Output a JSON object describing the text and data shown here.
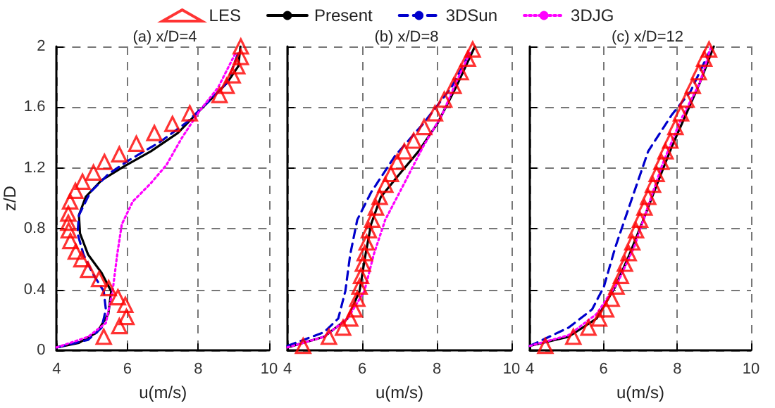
{
  "chart_data": [
    {
      "type": "line",
      "title": "(a) x/D=4",
      "xlabel": "u(m/s)",
      "ylabel": "z/D",
      "xlim": [
        4,
        10
      ],
      "xticks": [
        4,
        6,
        8,
        10
      ],
      "ylim": [
        0,
        2
      ],
      "yticks": [
        0,
        0.4,
        0.8,
        1.2,
        1.6,
        2
      ],
      "grid": true,
      "legend": "top",
      "series": [
        {
          "name": "LES",
          "type": "scatter",
          "marker": "triangle",
          "color": "#ff0000",
          "x": [
            9.2,
            9.2,
            9.1,
            8.97,
            8.8,
            8.6,
            7.76,
            7.27,
            6.76,
            6.25,
            5.77,
            5.35,
            5.04,
            4.73,
            4.53,
            4.38,
            4.33,
            4.33,
            4.34,
            4.39,
            4.54,
            4.7,
            4.89,
            5.2,
            5.47,
            5.73,
            5.94,
            5.97,
            5.77,
            5.33
          ],
          "values": [
            2.0,
            1.93,
            1.87,
            1.81,
            1.74,
            1.68,
            1.56,
            1.49,
            1.43,
            1.36,
            1.29,
            1.24,
            1.17,
            1.11,
            1.05,
            0.98,
            0.9,
            0.84,
            0.79,
            0.72,
            0.65,
            0.6,
            0.53,
            0.47,
            0.41,
            0.35,
            0.3,
            0.22,
            0.16,
            0.09
          ]
        },
        {
          "name": "Present",
          "marker": "none",
          "line_style": "solid",
          "color": "#000000",
          "x": [
            4,
            4.63,
            5.14,
            5.46,
            5.54,
            5.27,
            4.89,
            4.66,
            4.63,
            4.82,
            5.27,
            5.9,
            6.66,
            7.42,
            7.92,
            8.43,
            8.81,
            9.13,
            9.19
          ],
          "values": [
            0.02,
            0.05,
            0.12,
            0.24,
            0.39,
            0.51,
            0.63,
            0.77,
            0.89,
            1.01,
            1.12,
            1.21,
            1.31,
            1.43,
            1.55,
            1.67,
            1.76,
            1.87,
            2.0
          ]
        },
        {
          "name": "3DSun",
          "marker": "none",
          "line_style": "dashed",
          "color": "#0000cc",
          "x": [
            4,
            4.89,
            5.27,
            5.39,
            5.33,
            5.01,
            4.76,
            4.59,
            4.63,
            4.95,
            5.46,
            6.03,
            6.91,
            7.67,
            8.3,
            8.81,
            9.13
          ],
          "values": [
            0.02,
            0.07,
            0.15,
            0.27,
            0.39,
            0.51,
            0.63,
            0.77,
            0.89,
            1.04,
            1.16,
            1.25,
            1.37,
            1.5,
            1.64,
            1.76,
            1.96
          ]
        },
        {
          "name": "3DJG",
          "marker": "none",
          "line_style": "dotted",
          "color": "#ff00ff",
          "x": [
            4,
            4.89,
            5.39,
            5.58,
            5.71,
            5.84,
            6.15,
            6.66,
            7.1,
            7.54,
            8.05,
            8.56,
            9.06
          ],
          "values": [
            0.02,
            0.09,
            0.18,
            0.39,
            0.63,
            0.83,
            0.98,
            1.1,
            1.22,
            1.4,
            1.58,
            1.73,
            1.96
          ]
        }
      ]
    },
    {
      "type": "line",
      "title": "(b) x/D=8",
      "xlabel": "u(m/s)",
      "xlim": [
        4,
        10
      ],
      "xticks": [
        4,
        6,
        8,
        10
      ],
      "ylim": [
        0,
        2
      ],
      "yticks": [
        0,
        0.4,
        0.8,
        1.2,
        1.6,
        2
      ],
      "grid": true,
      "tick_labels": "x",
      "series": [
        {
          "type": "scatter",
          "marker": "triangle",
          "color": "#ff0000",
          "x": [
            4.42,
            5.11,
            5.49,
            5.68,
            5.8,
            5.87,
            5.93,
            5.97,
            6.02,
            6.07,
            6.12,
            6.18,
            6.27,
            6.37,
            6.47,
            6.62,
            6.77,
            6.94,
            7.13,
            7.38,
            7.66,
            7.95,
            8.2,
            8.45,
            8.64,
            8.83,
            8.96
          ],
          "values": [
            0.03,
            0.09,
            0.15,
            0.21,
            0.27,
            0.34,
            0.42,
            0.49,
            0.57,
            0.64,
            0.71,
            0.79,
            0.86,
            0.94,
            1.01,
            1.09,
            1.16,
            1.24,
            1.31,
            1.38,
            1.47,
            1.56,
            1.65,
            1.74,
            1.83,
            1.92,
            1.98
          ]
        },
        {
          "marker": "none",
          "line_style": "solid",
          "color": "#000000",
          "x": [
            4,
            4.98,
            5.61,
            5.93,
            6.09,
            6.24,
            6.5,
            7.0,
            7.51,
            8.01,
            8.51,
            9.02
          ],
          "values": [
            0.02,
            0.09,
            0.21,
            0.39,
            0.63,
            0.83,
            1.01,
            1.16,
            1.31,
            1.49,
            1.73,
            2.0
          ]
        },
        {
          "marker": "none",
          "line_style": "dashed",
          "color": "#0000cc",
          "x": [
            4,
            4.98,
            5.36,
            5.55,
            5.68,
            5.87,
            6.24,
            6.88,
            7.63,
            8.39,
            8.89
          ],
          "values": [
            0.03,
            0.12,
            0.21,
            0.39,
            0.63,
            0.86,
            1.04,
            1.28,
            1.49,
            1.73,
            1.96
          ]
        },
        {
          "marker": "none",
          "line_style": "dotted",
          "color": "#ff00ff",
          "x": [
            4,
            4.98,
            5.61,
            6.06,
            6.31,
            6.62,
            7.13,
            7.63,
            8.14,
            8.51,
            8.89
          ],
          "values": [
            0.02,
            0.09,
            0.21,
            0.39,
            0.63,
            0.86,
            1.1,
            1.34,
            1.55,
            1.76,
            1.96
          ]
        }
      ]
    },
    {
      "type": "line",
      "title": "(c) x/D=12",
      "xlabel": "u(m/s)",
      "xlim": [
        4,
        10
      ],
      "xticks": [
        4,
        6,
        8,
        10
      ],
      "ylim": [
        0,
        2
      ],
      "yticks": [
        0,
        0.4,
        0.8,
        1.2,
        1.6,
        2
      ],
      "grid": true,
      "tick_labels": "x",
      "series": [
        {
          "type": "scatter",
          "marker": "triangle",
          "color": "#ff0000",
          "x": [
            4.42,
            5.18,
            5.59,
            5.88,
            6.07,
            6.22,
            6.35,
            6.47,
            6.58,
            6.68,
            6.78,
            6.88,
            6.99,
            7.11,
            7.21,
            7.34,
            7.44,
            7.57,
            7.68,
            7.81,
            7.95,
            8.1,
            8.25,
            8.42,
            8.58,
            8.73,
            8.86
          ],
          "values": [
            0.03,
            0.09,
            0.15,
            0.21,
            0.27,
            0.34,
            0.42,
            0.49,
            0.57,
            0.64,
            0.71,
            0.79,
            0.86,
            0.94,
            1.01,
            1.09,
            1.16,
            1.24,
            1.31,
            1.38,
            1.47,
            1.56,
            1.65,
            1.74,
            1.83,
            1.92,
            1.98
          ]
        },
        {
          "marker": "none",
          "line_style": "solid",
          "color": "#000000",
          "x": [
            4,
            5.05,
            5.81,
            6.32,
            6.7,
            7.08,
            7.46,
            7.85,
            8.23,
            8.61,
            8.99
          ],
          "values": [
            0.03,
            0.09,
            0.21,
            0.42,
            0.63,
            0.86,
            1.1,
            1.34,
            1.55,
            1.76,
            2.0
          ]
        },
        {
          "marker": "none",
          "line_style": "dashed",
          "color": "#0000cc",
          "x": [
            4,
            5.05,
            5.69,
            6.01,
            6.32,
            6.7,
            7.21,
            7.85,
            8.35,
            8.86
          ],
          "values": [
            0.03,
            0.15,
            0.27,
            0.42,
            0.68,
            0.95,
            1.31,
            1.55,
            1.7,
            1.96
          ]
        },
        {
          "marker": "none",
          "line_style": "dotted",
          "color": "#ff00ff",
          "x": [
            4,
            5.05,
            5.81,
            6.39,
            6.83,
            7.21,
            7.59,
            8.1,
            8.61,
            8.92
          ],
          "values": [
            0.03,
            0.1,
            0.24,
            0.45,
            0.68,
            0.95,
            1.22,
            1.52,
            1.76,
            2.0
          ]
        }
      ]
    }
  ]
}
